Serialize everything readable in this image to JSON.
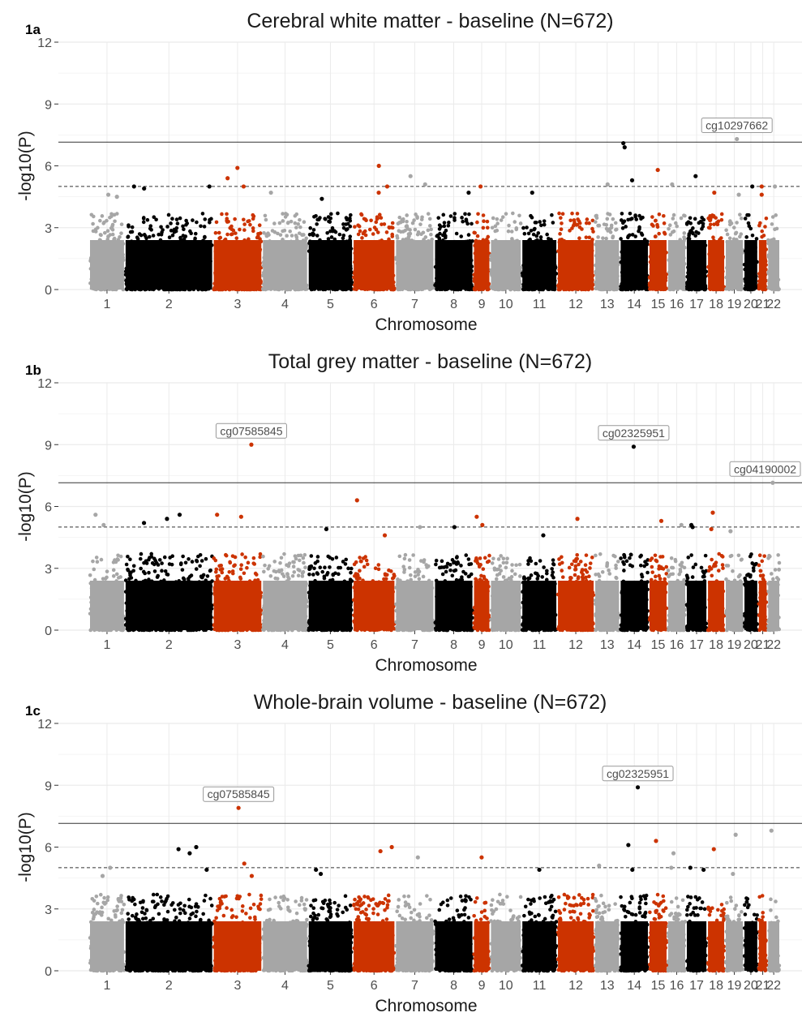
{
  "colors": {
    "grey": "#a6a6a6",
    "black": "#000000",
    "red": "#cc3300",
    "gridline": "#ebebeb",
    "threshold": "#333333"
  },
  "chart_data": [
    {
      "type": "scatter",
      "panel_label": "1a",
      "title": "Cerebral white matter - baseline (N=672)",
      "xlabel": "Chromosome",
      "ylabel": "-log10(P)",
      "ylim": [
        0,
        12
      ],
      "yticks": [
        "0",
        "3",
        "6",
        "9",
        "12"
      ],
      "grid": true,
      "chromosomes": [
        "1",
        "2",
        "3",
        "4",
        "5",
        "6",
        "7",
        "8",
        "9",
        "10",
        "11",
        "12",
        "13",
        "14",
        "15",
        "16",
        "17",
        "18",
        "19",
        "20",
        "21",
        "22"
      ],
      "genome_wide_threshold": 7.15,
      "suggestive_threshold": 5.0,
      "top_hits": [
        {
          "chr": "1",
          "y": 4.5
        },
        {
          "chr": "1",
          "y": 4.6
        },
        {
          "chr": "2",
          "y": 5.0
        },
        {
          "chr": "2",
          "y": 4.9
        },
        {
          "chr": "2",
          "y": 5.0
        },
        {
          "chr": "3",
          "y": 5.9
        },
        {
          "chr": "3",
          "y": 5.4
        },
        {
          "chr": "3",
          "y": 5.0
        },
        {
          "chr": "4",
          "y": 4.7
        },
        {
          "chr": "5",
          "y": 4.4
        },
        {
          "chr": "6",
          "y": 6.0
        },
        {
          "chr": "6",
          "y": 5.0
        },
        {
          "chr": "6",
          "y": 4.7
        },
        {
          "chr": "7",
          "y": 5.5
        },
        {
          "chr": "7",
          "y": 5.1
        },
        {
          "chr": "8",
          "y": 4.7
        },
        {
          "chr": "9",
          "y": 5.0
        },
        {
          "chr": "11",
          "y": 4.7
        },
        {
          "chr": "13",
          "y": 5.1
        },
        {
          "chr": "14",
          "y": 7.1
        },
        {
          "chr": "14",
          "y": 6.9
        },
        {
          "chr": "14",
          "y": 5.3
        },
        {
          "chr": "15",
          "y": 5.8
        },
        {
          "chr": "16",
          "y": 5.1
        },
        {
          "chr": "17",
          "y": 5.5
        },
        {
          "chr": "18",
          "y": 4.7
        },
        {
          "chr": "19",
          "y": 7.3
        },
        {
          "chr": "19",
          "y": 4.6
        },
        {
          "chr": "20",
          "y": 5.0
        },
        {
          "chr": "21",
          "y": 5.0
        },
        {
          "chr": "21",
          "y": 4.6
        },
        {
          "chr": "22",
          "y": 5.0
        }
      ],
      "annotations": [
        {
          "label": "cg10297662",
          "chr": "19",
          "y": 7.3
        }
      ]
    },
    {
      "type": "scatter",
      "panel_label": "1b",
      "title": "Total grey matter - baseline (N=672)",
      "xlabel": "Chromosome",
      "ylabel": "-log10(P)",
      "ylim": [
        0,
        12
      ],
      "yticks": [
        "0",
        "3",
        "6",
        "9",
        "12"
      ],
      "grid": true,
      "chromosomes": [
        "1",
        "2",
        "3",
        "4",
        "5",
        "6",
        "7",
        "8",
        "9",
        "10",
        "11",
        "12",
        "13",
        "14",
        "15",
        "16",
        "17",
        "18",
        "19",
        "20",
        "21",
        "22"
      ],
      "genome_wide_threshold": 7.15,
      "suggestive_threshold": 5.0,
      "top_hits": [
        {
          "chr": "1",
          "y": 5.6
        },
        {
          "chr": "1",
          "y": 5.1
        },
        {
          "chr": "2",
          "y": 5.4
        },
        {
          "chr": "2",
          "y": 5.2
        },
        {
          "chr": "2",
          "y": 5.6
        },
        {
          "chr": "3",
          "y": 9.0
        },
        {
          "chr": "3",
          "y": 5.6
        },
        {
          "chr": "3",
          "y": 5.5
        },
        {
          "chr": "5",
          "y": 4.9
        },
        {
          "chr": "6",
          "y": 6.3
        },
        {
          "chr": "6",
          "y": 4.6
        },
        {
          "chr": "7",
          "y": 5.0
        },
        {
          "chr": "8",
          "y": 5.0
        },
        {
          "chr": "9",
          "y": 5.5
        },
        {
          "chr": "9",
          "y": 5.1
        },
        {
          "chr": "11",
          "y": 4.6
        },
        {
          "chr": "12",
          "y": 5.4
        },
        {
          "chr": "14",
          "y": 8.9
        },
        {
          "chr": "15",
          "y": 5.3
        },
        {
          "chr": "16",
          "y": 5.1
        },
        {
          "chr": "17",
          "y": 5.1
        },
        {
          "chr": "17",
          "y": 5.0
        },
        {
          "chr": "18",
          "y": 5.7
        },
        {
          "chr": "18",
          "y": 4.9
        },
        {
          "chr": "19",
          "y": 4.8
        },
        {
          "chr": "22",
          "y": 7.15
        }
      ],
      "annotations": [
        {
          "label": "cg07585845",
          "chr": "3",
          "y": 9.0
        },
        {
          "label": "cg02325951",
          "chr": "14",
          "y": 8.9
        },
        {
          "label": "cg04190002",
          "chr": "22",
          "y": 7.15
        }
      ]
    },
    {
      "type": "scatter",
      "panel_label": "1c",
      "title": "Whole-brain volume - baseline (N=672)",
      "xlabel": "Chromosome",
      "ylabel": "-log10(P)",
      "ylim": [
        0,
        12
      ],
      "yticks": [
        "0",
        "3",
        "6",
        "9",
        "12"
      ],
      "grid": true,
      "chromosomes": [
        "1",
        "2",
        "3",
        "4",
        "5",
        "6",
        "7",
        "8",
        "9",
        "10",
        "11",
        "12",
        "13",
        "14",
        "15",
        "16",
        "17",
        "18",
        "19",
        "20",
        "21",
        "22"
      ],
      "genome_wide_threshold": 7.15,
      "suggestive_threshold": 5.0,
      "top_hits": [
        {
          "chr": "1",
          "y": 5.0
        },
        {
          "chr": "1",
          "y": 4.6
        },
        {
          "chr": "2",
          "y": 5.9
        },
        {
          "chr": "2",
          "y": 6.0
        },
        {
          "chr": "2",
          "y": 5.7
        },
        {
          "chr": "2",
          "y": 4.9
        },
        {
          "chr": "3",
          "y": 7.9
        },
        {
          "chr": "3",
          "y": 5.2
        },
        {
          "chr": "3",
          "y": 4.6
        },
        {
          "chr": "5",
          "y": 4.9
        },
        {
          "chr": "5",
          "y": 4.7
        },
        {
          "chr": "6",
          "y": 6.0
        },
        {
          "chr": "6",
          "y": 5.8
        },
        {
          "chr": "7",
          "y": 5.5
        },
        {
          "chr": "9",
          "y": 5.5
        },
        {
          "chr": "11",
          "y": 4.9
        },
        {
          "chr": "13",
          "y": 5.1
        },
        {
          "chr": "14",
          "y": 8.9
        },
        {
          "chr": "14",
          "y": 6.1
        },
        {
          "chr": "14",
          "y": 4.9
        },
        {
          "chr": "15",
          "y": 6.3
        },
        {
          "chr": "16",
          "y": 5.7
        },
        {
          "chr": "16",
          "y": 5.0
        },
        {
          "chr": "17",
          "y": 5.0
        },
        {
          "chr": "17",
          "y": 4.9
        },
        {
          "chr": "18",
          "y": 5.9
        },
        {
          "chr": "19",
          "y": 6.6
        },
        {
          "chr": "19",
          "y": 4.7
        },
        {
          "chr": "22",
          "y": 6.8
        }
      ],
      "annotations": [
        {
          "label": "cg07585845",
          "chr": "3",
          "y": 7.9
        },
        {
          "label": "cg02325951",
          "chr": "14",
          "y": 8.9
        }
      ]
    }
  ]
}
